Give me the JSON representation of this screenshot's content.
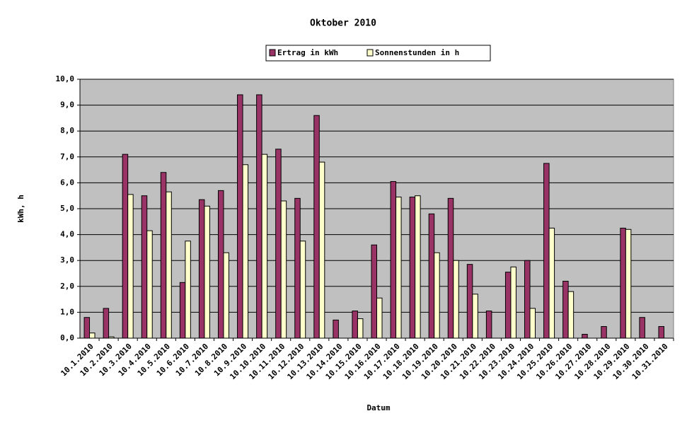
{
  "chart_data": {
    "type": "bar",
    "title": "Oktober 2010",
    "x_label": "Datum",
    "y_label": "kWh, h",
    "categories": [
      "10.1.2010",
      "10.2.2010",
      "10.3.2010",
      "10.4.2010",
      "10.5.2010",
      "10.6.2010",
      "10.7.2010",
      "10.8.2010",
      "10.9.2010",
      "10.10.2010",
      "10.11.2010",
      "10.12.2010",
      "10.13.2010",
      "10.14.2010",
      "10.15.2010",
      "10.16.2010",
      "10.17.2010",
      "10.18.2010",
      "10.19.2010",
      "10.20.2010",
      "10.21.2010",
      "10.22.2010",
      "10.23.2010",
      "10.24.2010",
      "10.25.2010",
      "10.26.2010",
      "10.27.2010",
      "10.28.2010",
      "10.29.2010",
      "10.30.2010",
      "10.31.2010"
    ],
    "series": [
      {
        "name": "Ertrag in kWh",
        "color": "#993366",
        "values": [
          0.8,
          1.15,
          7.1,
          5.5,
          6.4,
          2.15,
          5.35,
          5.7,
          9.4,
          9.4,
          7.3,
          5.4,
          8.6,
          0.7,
          1.05,
          3.6,
          6.05,
          5.45,
          4.8,
          5.4,
          2.85,
          1.05,
          2.55,
          3.0,
          6.75,
          2.2,
          0.15,
          0.45,
          4.25,
          0.8,
          0.45
        ]
      },
      {
        "name": "Sonnenstunden in h",
        "color": "#ffffcc",
        "values": [
          0.2,
          0.05,
          5.55,
          4.15,
          5.65,
          3.75,
          5.1,
          3.3,
          6.7,
          7.1,
          5.3,
          3.75,
          6.8,
          0,
          0.75,
          1.55,
          5.45,
          5.5,
          3.3,
          3.0,
          1.7,
          0,
          2.75,
          1.15,
          4.25,
          1.8,
          0,
          0,
          4.2,
          0,
          0
        ]
      }
    ],
    "ylim": [
      0,
      10
    ],
    "yticks": [
      {
        "value": 0,
        "label": "0,0"
      },
      {
        "value": 1,
        "label": "1,0"
      },
      {
        "value": 2,
        "label": "2,0"
      },
      {
        "value": 3,
        "label": "3,0"
      },
      {
        "value": 4,
        "label": "4,0"
      },
      {
        "value": 5,
        "label": "5,0"
      },
      {
        "value": 6,
        "label": "6,0"
      },
      {
        "value": 7,
        "label": "7,0"
      },
      {
        "value": 8,
        "label": "8,0"
      },
      {
        "value": 9,
        "label": "9,0"
      },
      {
        "value": 10,
        "label": "10,0"
      }
    ],
    "grid": true,
    "plot_background": "#c0c0c0",
    "legend_position": "top"
  }
}
